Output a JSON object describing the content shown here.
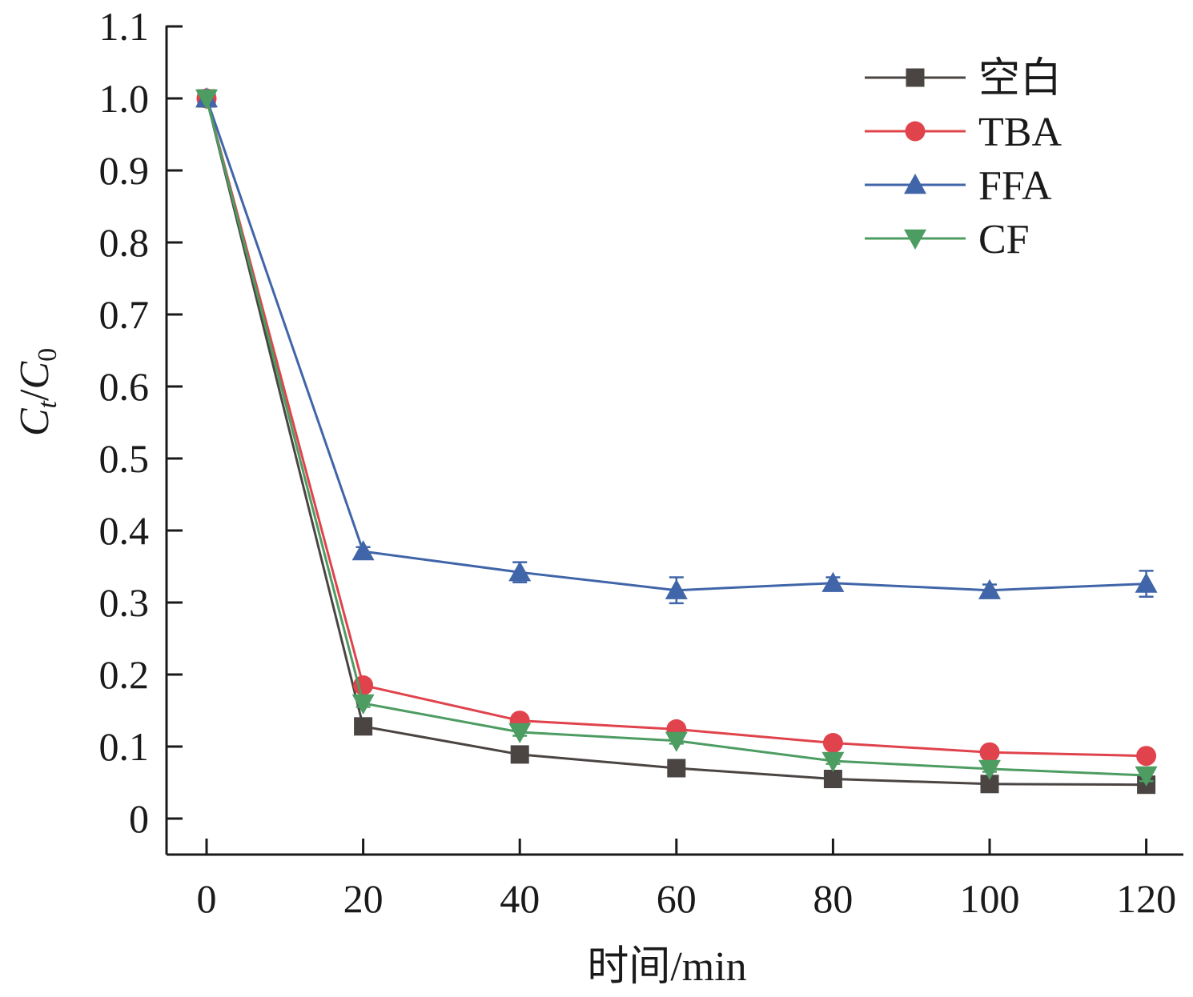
{
  "chart_data": {
    "type": "line",
    "title": "",
    "xlabel": "时间/min",
    "ylabel": {
      "base": "C",
      "sub_t": "t",
      "slash": "/",
      "base2": "C",
      "sub_0": "0"
    },
    "x": [
      0,
      20,
      40,
      60,
      80,
      100,
      120
    ],
    "xticks": [
      "0",
      "20",
      "40",
      "60",
      "80",
      "100",
      "120"
    ],
    "yticks": [
      "0",
      "0.1",
      "0.2",
      "0.3",
      "0.4",
      "0.5",
      "0.6",
      "0.7",
      "0.8",
      "0.9",
      "1.0",
      "1.1"
    ],
    "ytick_values": [
      0,
      0.1,
      0.2,
      0.3,
      0.4,
      0.5,
      0.6,
      0.7,
      0.8,
      0.9,
      1.0,
      1.1
    ],
    "xlim": [
      -5,
      122
    ],
    "ylim": [
      -0.05,
      1.1
    ],
    "grid": false,
    "legend_position": "top-right",
    "series": [
      {
        "name": "空白",
        "color": "#4a4542",
        "marker": "square",
        "values": [
          1.0,
          0.128,
          0.089,
          0.07,
          0.055,
          0.048,
          0.047
        ],
        "errors": [
          0,
          0.008,
          0.006,
          0.005,
          0.004,
          0.004,
          0.004
        ]
      },
      {
        "name": "TBA",
        "color": "#e0434c",
        "marker": "circle",
        "values": [
          1.0,
          0.185,
          0.136,
          0.124,
          0.105,
          0.092,
          0.087
        ],
        "errors": [
          0,
          0.005,
          0.005,
          0.004,
          0.004,
          0.003,
          0.003
        ]
      },
      {
        "name": "FFA",
        "color": "#4065a8",
        "marker": "triangle-up",
        "values": [
          1.0,
          0.371,
          0.342,
          0.317,
          0.327,
          0.317,
          0.326
        ],
        "errors": [
          0,
          0.006,
          0.014,
          0.018,
          0.008,
          0.008,
          0.018
        ]
      },
      {
        "name": "CF",
        "color": "#4d9c62",
        "marker": "triangle-down",
        "values": [
          1.0,
          0.16,
          0.12,
          0.108,
          0.08,
          0.069,
          0.06
        ],
        "errors": [
          0,
          0.005,
          0.005,
          0.004,
          0.004,
          0.004,
          0.008
        ]
      }
    ]
  }
}
